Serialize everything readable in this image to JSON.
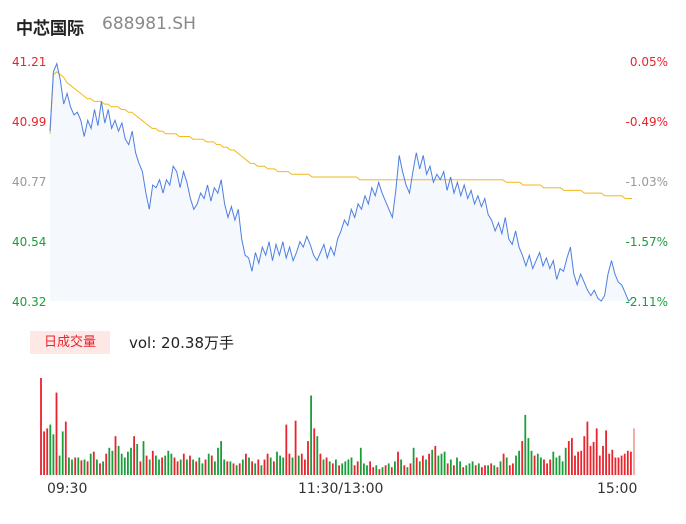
{
  "header": {
    "name": "中芯国际",
    "code": "688981.SH"
  },
  "chart_data": {
    "type": "line",
    "price_axis": {
      "ticks": [
        "41.21",
        "40.99",
        "40.77",
        "40.54",
        "40.32"
      ],
      "ylim": [
        40.32,
        41.21
      ]
    },
    "pct_axis": {
      "ticks": [
        "0.05%",
        "-0.49%",
        "-1.03%",
        "-1.57%",
        "-2.11%"
      ]
    },
    "x_ticks": [
      "09:30",
      "11:30/13:00",
      "15:00"
    ],
    "series": [
      {
        "role": "price",
        "color": "#4e7fe0",
        "values": [
          40.95,
          41.17,
          41.2,
          41.14,
          41.05,
          41.09,
          41.04,
          41.01,
          41.02,
          40.99,
          40.93,
          40.99,
          40.96,
          41.03,
          40.97,
          41.06,
          40.98,
          41.03,
          40.96,
          40.99,
          40.95,
          40.98,
          40.92,
          40.9,
          40.95,
          40.87,
          40.83,
          40.8,
          40.72,
          40.66,
          40.75,
          40.74,
          40.77,
          40.72,
          40.77,
          40.75,
          40.82,
          40.8,
          40.74,
          40.8,
          40.76,
          40.7,
          40.66,
          40.68,
          40.72,
          40.7,
          40.75,
          40.69,
          40.74,
          40.72,
          40.77,
          40.68,
          40.63,
          40.67,
          40.62,
          40.66,
          40.55,
          40.49,
          40.48,
          40.43,
          40.5,
          40.46,
          40.52,
          40.49,
          40.54,
          40.47,
          40.53,
          40.49,
          40.54,
          40.48,
          40.52,
          40.47,
          40.5,
          40.54,
          40.52,
          40.56,
          40.53,
          40.49,
          40.47,
          40.5,
          40.53,
          40.48,
          40.52,
          40.49,
          40.55,
          40.58,
          40.62,
          40.6,
          40.66,
          40.63,
          40.68,
          40.66,
          40.71,
          40.68,
          40.74,
          40.71,
          40.76,
          40.72,
          40.69,
          40.66,
          40.63,
          40.73,
          40.86,
          40.8,
          40.75,
          40.72,
          40.8,
          40.87,
          40.81,
          40.86,
          40.79,
          40.82,
          40.76,
          40.79,
          40.77,
          40.8,
          40.73,
          40.78,
          40.72,
          40.76,
          40.71,
          40.75,
          40.7,
          40.73,
          40.68,
          40.71,
          40.67,
          40.7,
          40.64,
          40.62,
          40.58,
          40.61,
          40.57,
          40.63,
          40.55,
          40.53,
          40.58,
          40.52,
          40.49,
          40.45,
          40.49,
          40.44,
          40.47,
          40.5,
          40.45,
          40.48,
          40.44,
          40.47,
          40.4,
          40.44,
          40.43,
          40.48,
          40.52,
          40.42,
          40.38,
          40.42,
          40.39,
          40.36,
          40.34,
          40.36,
          40.33,
          40.32,
          40.34,
          40.42,
          40.47,
          40.42,
          40.39,
          40.38,
          40.35,
          40.32,
          40.33
        ]
      },
      {
        "role": "average",
        "color": "#f2b81e",
        "values": [
          40.94,
          41.16,
          41.17,
          41.16,
          41.15,
          41.13,
          41.12,
          41.11,
          41.1,
          41.09,
          41.08,
          41.07,
          41.07,
          41.06,
          41.06,
          41.06,
          41.05,
          41.05,
          41.04,
          41.04,
          41.04,
          41.03,
          41.03,
          41.02,
          41.02,
          41.01,
          41.0,
          40.99,
          40.98,
          40.97,
          40.96,
          40.96,
          40.95,
          40.95,
          40.94,
          40.94,
          40.94,
          40.94,
          40.93,
          40.93,
          40.93,
          40.93,
          40.92,
          40.92,
          40.92,
          40.92,
          40.91,
          40.91,
          40.91,
          40.9,
          40.9,
          40.89,
          40.89,
          40.88,
          40.88,
          40.87,
          40.86,
          40.85,
          40.84,
          40.83,
          40.83,
          40.82,
          40.82,
          40.82,
          40.81,
          40.81,
          40.81,
          40.8,
          40.8,
          40.8,
          40.8,
          40.79,
          40.79,
          40.79,
          40.79,
          40.79,
          40.79,
          40.78,
          40.78,
          40.78,
          40.78,
          40.78,
          40.78,
          40.78,
          40.78,
          40.78,
          40.78,
          40.78,
          40.78,
          40.78,
          40.78,
          40.77,
          40.77,
          40.77,
          40.77,
          40.77,
          40.77,
          40.77,
          40.77,
          40.77,
          40.77,
          40.77,
          40.77,
          40.77,
          40.77,
          40.77,
          40.77,
          40.77,
          40.77,
          40.77,
          40.77,
          40.77,
          40.77,
          40.77,
          40.77,
          40.77,
          40.77,
          40.77,
          40.77,
          40.77,
          40.77,
          40.77,
          40.77,
          40.77,
          40.77,
          40.77,
          40.77,
          40.77,
          40.77,
          40.77,
          40.77,
          40.77,
          40.77,
          40.77,
          40.76,
          40.76,
          40.76,
          40.76,
          40.76,
          40.75,
          40.75,
          40.75,
          40.75,
          40.75,
          40.75,
          40.74,
          40.74,
          40.74,
          40.74,
          40.74,
          40.74,
          40.73,
          40.73,
          40.73,
          40.73,
          40.73,
          40.73,
          40.72,
          40.72,
          40.72,
          40.72,
          40.72,
          40.72,
          40.71,
          40.71,
          40.71,
          40.71,
          40.71,
          40.71,
          40.7,
          40.7,
          40.7
        ]
      }
    ],
    "volume": {
      "label": "日成交量",
      "summary": "vol: 20.38万手",
      "ymax": 100,
      "values": [
        100,
        45,
        48,
        52,
        42,
        85,
        20,
        45,
        55,
        18,
        16,
        18,
        18,
        15,
        16,
        14,
        22,
        24,
        16,
        12,
        14,
        22,
        28,
        25,
        40,
        30,
        22,
        18,
        24,
        28,
        40,
        32,
        14,
        35,
        20,
        16,
        25,
        20,
        16,
        18,
        20,
        25,
        22,
        18,
        14,
        16,
        22,
        16,
        20,
        16,
        14,
        18,
        12,
        16,
        22,
        20,
        14,
        28,
        35,
        16,
        14,
        14,
        12,
        10,
        12,
        16,
        22,
        18,
        14,
        12,
        16,
        10,
        16,
        22,
        18,
        14,
        24,
        20,
        18,
        52,
        22,
        18,
        56,
        20,
        22,
        16,
        35,
        82,
        48,
        40,
        22,
        16,
        18,
        14,
        12,
        16,
        10,
        12,
        14,
        16,
        18,
        10,
        14,
        28,
        12,
        10,
        14,
        8,
        10,
        6,
        8,
        10,
        12,
        8,
        14,
        24,
        16,
        10,
        8,
        12,
        28,
        18,
        14,
        20,
        16,
        22,
        26,
        30,
        20,
        22,
        24,
        12,
        16,
        10,
        18,
        14,
        8,
        10,
        12,
        14,
        10,
        12,
        8,
        10,
        10,
        12,
        10,
        8,
        14,
        22,
        18,
        10,
        12,
        20,
        25,
        35,
        62,
        38,
        25,
        20,
        22,
        18,
        16,
        12,
        16,
        24,
        18,
        20,
        14,
        28,
        35,
        38,
        20,
        24,
        25,
        40,
        55,
        30,
        34,
        48,
        20,
        30,
        46,
        22,
        26,
        18,
        18,
        20,
        22,
        25,
        24,
        48
      ]
    }
  }
}
